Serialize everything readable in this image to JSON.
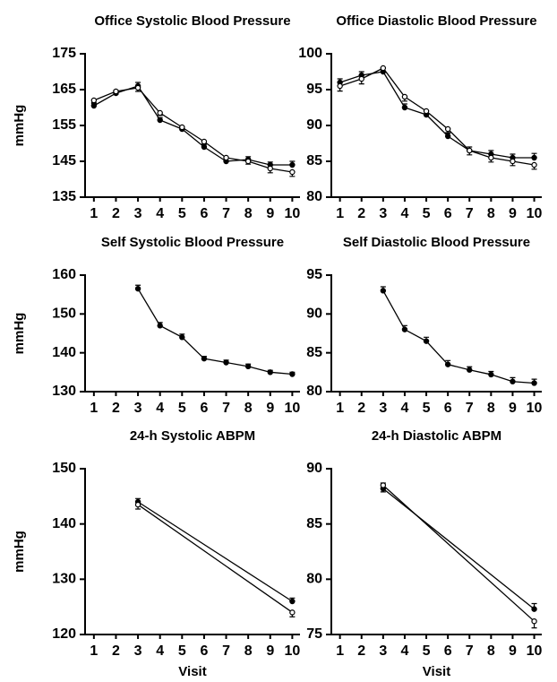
{
  "chart_data": [
    {
      "type": "line",
      "title": "Office Systolic Blood Pressure",
      "ylabel": "mmHg",
      "x": [
        1,
        2,
        3,
        4,
        5,
        6,
        7,
        8,
        9,
        10
      ],
      "xlim": [
        0.6,
        10.35
      ],
      "xticks": [
        1,
        2,
        3,
        4,
        5,
        6,
        7,
        8,
        9,
        10
      ],
      "ylim": [
        135,
        175
      ],
      "yticks": [
        135,
        145,
        155,
        165,
        175
      ],
      "series": [
        {
          "color": "#000000",
          "filled": true,
          "values": [
            160.5,
            164,
            166,
            156.5,
            154,
            149,
            145,
            145.5,
            144,
            144
          ],
          "errors": [
            0.6,
            0.8,
            1,
            0.7,
            0.7,
            0.8,
            0.8,
            0.8,
            0.8,
            1
          ]
        },
        {
          "color": "#000000",
          "filled": false,
          "values": [
            162,
            164.5,
            165.5,
            158.5,
            154.5,
            150.5,
            146,
            145,
            143,
            142
          ],
          "errors": [
            0.6,
            0.8,
            1,
            0.7,
            0.7,
            0.8,
            0.8,
            0.8,
            1.2,
            1.2
          ]
        }
      ]
    },
    {
      "type": "line",
      "title": "Office Diastolic Blood Pressure",
      "x": [
        1,
        2,
        3,
        4,
        5,
        6,
        7,
        8,
        9,
        10
      ],
      "xlim": [
        0.6,
        10.35
      ],
      "xticks": [
        1,
        2,
        3,
        4,
        5,
        6,
        7,
        8,
        9,
        10
      ],
      "ylim": [
        80,
        100
      ],
      "yticks": [
        80,
        85,
        90,
        95,
        100
      ],
      "series": [
        {
          "color": "#000000",
          "filled": true,
          "values": [
            96,
            97,
            97.5,
            92.5,
            91.5,
            88.5,
            86.5,
            86,
            85.5,
            85.5
          ],
          "errors": [
            0.5,
            0.5,
            0.5,
            0.5,
            0.5,
            0.5,
            0.5,
            0.5,
            0.5,
            0.6
          ]
        },
        {
          "color": "#000000",
          "filled": false,
          "values": [
            95.5,
            96.5,
            98,
            94,
            92,
            89.5,
            86.5,
            85.5,
            85,
            84.5
          ],
          "errors": [
            0.7,
            0.7,
            0.5,
            0.6,
            0.6,
            0.6,
            0.6,
            0.6,
            0.6,
            0.6
          ]
        }
      ]
    },
    {
      "type": "line",
      "title": "Self Systolic Blood Pressure",
      "ylabel": "mmHg",
      "x": [
        3,
        4,
        5,
        6,
        7,
        8,
        9,
        10
      ],
      "xlim": [
        0.6,
        10.35
      ],
      "xticks": [
        1,
        2,
        3,
        4,
        5,
        6,
        7,
        8,
        9,
        10
      ],
      "ylim": [
        130,
        160
      ],
      "yticks": [
        130,
        140,
        150,
        160
      ],
      "series": [
        {
          "color": "#000000",
          "filled": true,
          "values": [
            156.5,
            147,
            144,
            138.5,
            137.5,
            136.5,
            135,
            134.5
          ],
          "errors": [
            0.9,
            0.8,
            0.8,
            0.6,
            0.6,
            0.6,
            0.5,
            0.5
          ]
        }
      ]
    },
    {
      "type": "line",
      "title": "Self Diastolic Blood Pressure",
      "x": [
        3,
        4,
        5,
        6,
        7,
        8,
        9,
        10
      ],
      "xlim": [
        0.6,
        10.35
      ],
      "xticks": [
        1,
        2,
        3,
        4,
        5,
        6,
        7,
        8,
        9,
        10
      ],
      "ylim": [
        80,
        95
      ],
      "yticks": [
        80,
        85,
        90,
        95
      ],
      "series": [
        {
          "color": "#000000",
          "filled": true,
          "values": [
            93,
            88,
            86.5,
            83.5,
            82.8,
            82.2,
            81.3,
            81.1
          ],
          "errors": [
            0.5,
            0.5,
            0.5,
            0.5,
            0.4,
            0.4,
            0.5,
            0.5
          ]
        }
      ]
    },
    {
      "type": "line",
      "title": "24-h Systolic ABPM",
      "ylabel": "mmHg",
      "xlabel": "Visit",
      "x": [
        3,
        10
      ],
      "xlim": [
        0.6,
        10.35
      ],
      "xticks": [
        1,
        2,
        3,
        4,
        5,
        6,
        7,
        8,
        9,
        10
      ],
      "ylim": [
        120,
        150
      ],
      "yticks": [
        120,
        130,
        140,
        150
      ],
      "series": [
        {
          "color": "#000000",
          "filled": true,
          "values": [
            144,
            126
          ],
          "errors": [
            0.6,
            0.6
          ]
        },
        {
          "color": "#000000",
          "filled": false,
          "values": [
            143.5,
            124
          ],
          "errors": [
            0.8,
            0.8
          ]
        }
      ]
    },
    {
      "type": "line",
      "title": "24-h Diastolic ABPM",
      "xlabel": "Visit",
      "x": [
        3,
        10
      ],
      "xlim": [
        0.6,
        10.35
      ],
      "xticks": [
        1,
        2,
        3,
        4,
        5,
        6,
        7,
        8,
        9,
        10
      ],
      "ylim": [
        75,
        90
      ],
      "yticks": [
        75,
        80,
        85,
        90
      ],
      "series": [
        {
          "color": "#000000",
          "filled": true,
          "values": [
            88.2,
            77.3
          ],
          "errors": [
            0.5,
            0.5
          ]
        },
        {
          "color": "#000000",
          "filled": false,
          "values": [
            88.5,
            76.2
          ],
          "errors": [
            0.6,
            0.6
          ]
        }
      ]
    }
  ]
}
